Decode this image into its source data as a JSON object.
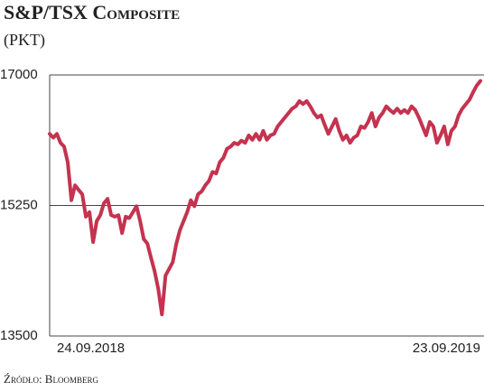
{
  "chart_data": {
    "type": "line",
    "title": "S&P/TSX Composite",
    "subtitle": "(PKT)",
    "source": "Źródło: Bloomberg",
    "categories": [
      "24.09.2018",
      null,
      null,
      null,
      null,
      null,
      null,
      null,
      null,
      null,
      null,
      null,
      null,
      null,
      null,
      null,
      null,
      null,
      null,
      null,
      null,
      null,
      null,
      null,
      null,
      null,
      null,
      null,
      null,
      null,
      null,
      null,
      null,
      null,
      null,
      null,
      null,
      null,
      null,
      null,
      null,
      null,
      null,
      null,
      null,
      null,
      null,
      null,
      null,
      null,
      null,
      null,
      null,
      null,
      null,
      null,
      null,
      null,
      null,
      null,
      null,
      null,
      null,
      null,
      null,
      null,
      null,
      null,
      null,
      null,
      null,
      null,
      null,
      null,
      null,
      null,
      null,
      null,
      null,
      null,
      null,
      null,
      null,
      null,
      null,
      null,
      null,
      null,
      null,
      null,
      null,
      null,
      null,
      null,
      null,
      null,
      null,
      null,
      null,
      null,
      null,
      null,
      null,
      null,
      null,
      null,
      null,
      null,
      null,
      null,
      null,
      null,
      null,
      null,
      null,
      null,
      null,
      null,
      null,
      "23.09.2019"
    ],
    "series": [
      {
        "name": "S&P/TSX Composite",
        "color": "#c4334f",
        "values": [
          16210,
          16160,
          16210,
          16090,
          16040,
          15830,
          15320,
          15520,
          15460,
          15400,
          15100,
          15160,
          14760,
          15040,
          15120,
          15280,
          15340,
          15120,
          15100,
          15120,
          14880,
          15100,
          15080,
          15160,
          15240,
          15040,
          14800,
          14740,
          14550,
          14370,
          14130,
          13790,
          14310,
          14400,
          14490,
          14740,
          14920,
          15040,
          15160,
          15320,
          15240,
          15400,
          15440,
          15520,
          15580,
          15700,
          15680,
          15830,
          15890,
          16010,
          16040,
          16090,
          16070,
          16120,
          16090,
          16190,
          16130,
          16210,
          16130,
          16250,
          16130,
          16190,
          16210,
          16310,
          16370,
          16430,
          16490,
          16550,
          16580,
          16650,
          16610,
          16650,
          16580,
          16490,
          16430,
          16460,
          16330,
          16210,
          16310,
          16410,
          16250,
          16130,
          16190,
          16090,
          16160,
          16190,
          16310,
          16290,
          16370,
          16490,
          16310,
          16430,
          16490,
          16580,
          16530,
          16490,
          16550,
          16490,
          16530,
          16490,
          16580,
          16530,
          16430,
          16310,
          16190,
          16370,
          16310,
          16090,
          16190,
          16310,
          16070,
          16250,
          16310,
          16460,
          16550,
          16610,
          16670,
          16770,
          16860,
          16920
        ]
      }
    ],
    "ylim": [
      13500,
      17000
    ],
    "yticks": [
      13500,
      15250,
      17000
    ],
    "grid": true
  }
}
